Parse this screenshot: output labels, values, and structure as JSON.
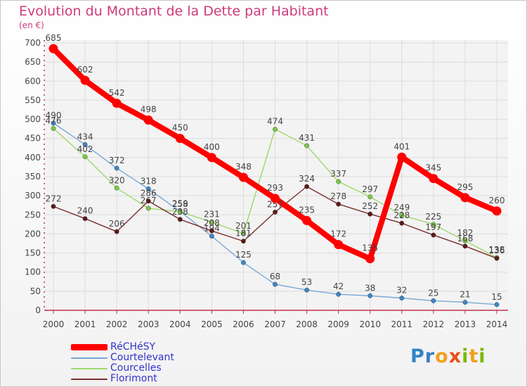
{
  "chart_data": {
    "type": "line",
    "title": "Evolution du Montant de la Dette par Habitant",
    "unit_label": "(en €)",
    "categories": [
      "2000",
      "2001",
      "2002",
      "2003",
      "2004",
      "2005",
      "2006",
      "2007",
      "2008",
      "2009",
      "2010",
      "2011",
      "2012",
      "2013",
      "2014"
    ],
    "ylim": [
      0,
      700
    ],
    "yticks": [
      0,
      50,
      100,
      150,
      200,
      250,
      300,
      350,
      400,
      450,
      500,
      550,
      600,
      650,
      700
    ],
    "grid": true,
    "legend_position": "bottom-left",
    "series": [
      {
        "name": "Courtelevant",
        "color": "#7aa8d8",
        "marker": "#3d85c6",
        "values": [
          490,
          434,
          372,
          318,
          259,
          194,
          125,
          68,
          53,
          42,
          38,
          32,
          25,
          21,
          15
        ]
      },
      {
        "name": "Courcelles",
        "color": "#9ed86a",
        "marker": "#7ac943",
        "values": [
          476,
          402,
          320,
          267,
          258,
          231,
          201,
          474,
          431,
          337,
          297,
          249,
          225,
          182,
          138
        ]
      },
      {
        "name": "Florimont",
        "color": "#7a2e2e",
        "marker": "#5c1a1a",
        "values": [
          272,
          240,
          206,
          286,
          238,
          208,
          181,
          257,
          324,
          278,
          252,
          228,
          197,
          168,
          136
        ]
      },
      {
        "name": "RéCHéSY",
        "color": "#ff0000",
        "marker": "#ff0000",
        "values": [
          685,
          602,
          542,
          498,
          450,
          400,
          348,
          293,
          235,
          172,
          135,
          401,
          345,
          295,
          260
        ]
      }
    ]
  },
  "legend": {
    "items": [
      {
        "label": "RéCHéSY",
        "color": "#ff0000",
        "thickness": 9
      },
      {
        "label": "Courtelevant",
        "color": "#7aa8d8",
        "thickness": 2
      },
      {
        "label": "Courcelles",
        "color": "#9ed86a",
        "thickness": 2
      },
      {
        "label": "Florimont",
        "color": "#7a2e2e",
        "thickness": 2
      }
    ]
  },
  "logo": {
    "parts": [
      "P",
      "r",
      "o",
      "x",
      "i",
      "t",
      "i"
    ]
  }
}
